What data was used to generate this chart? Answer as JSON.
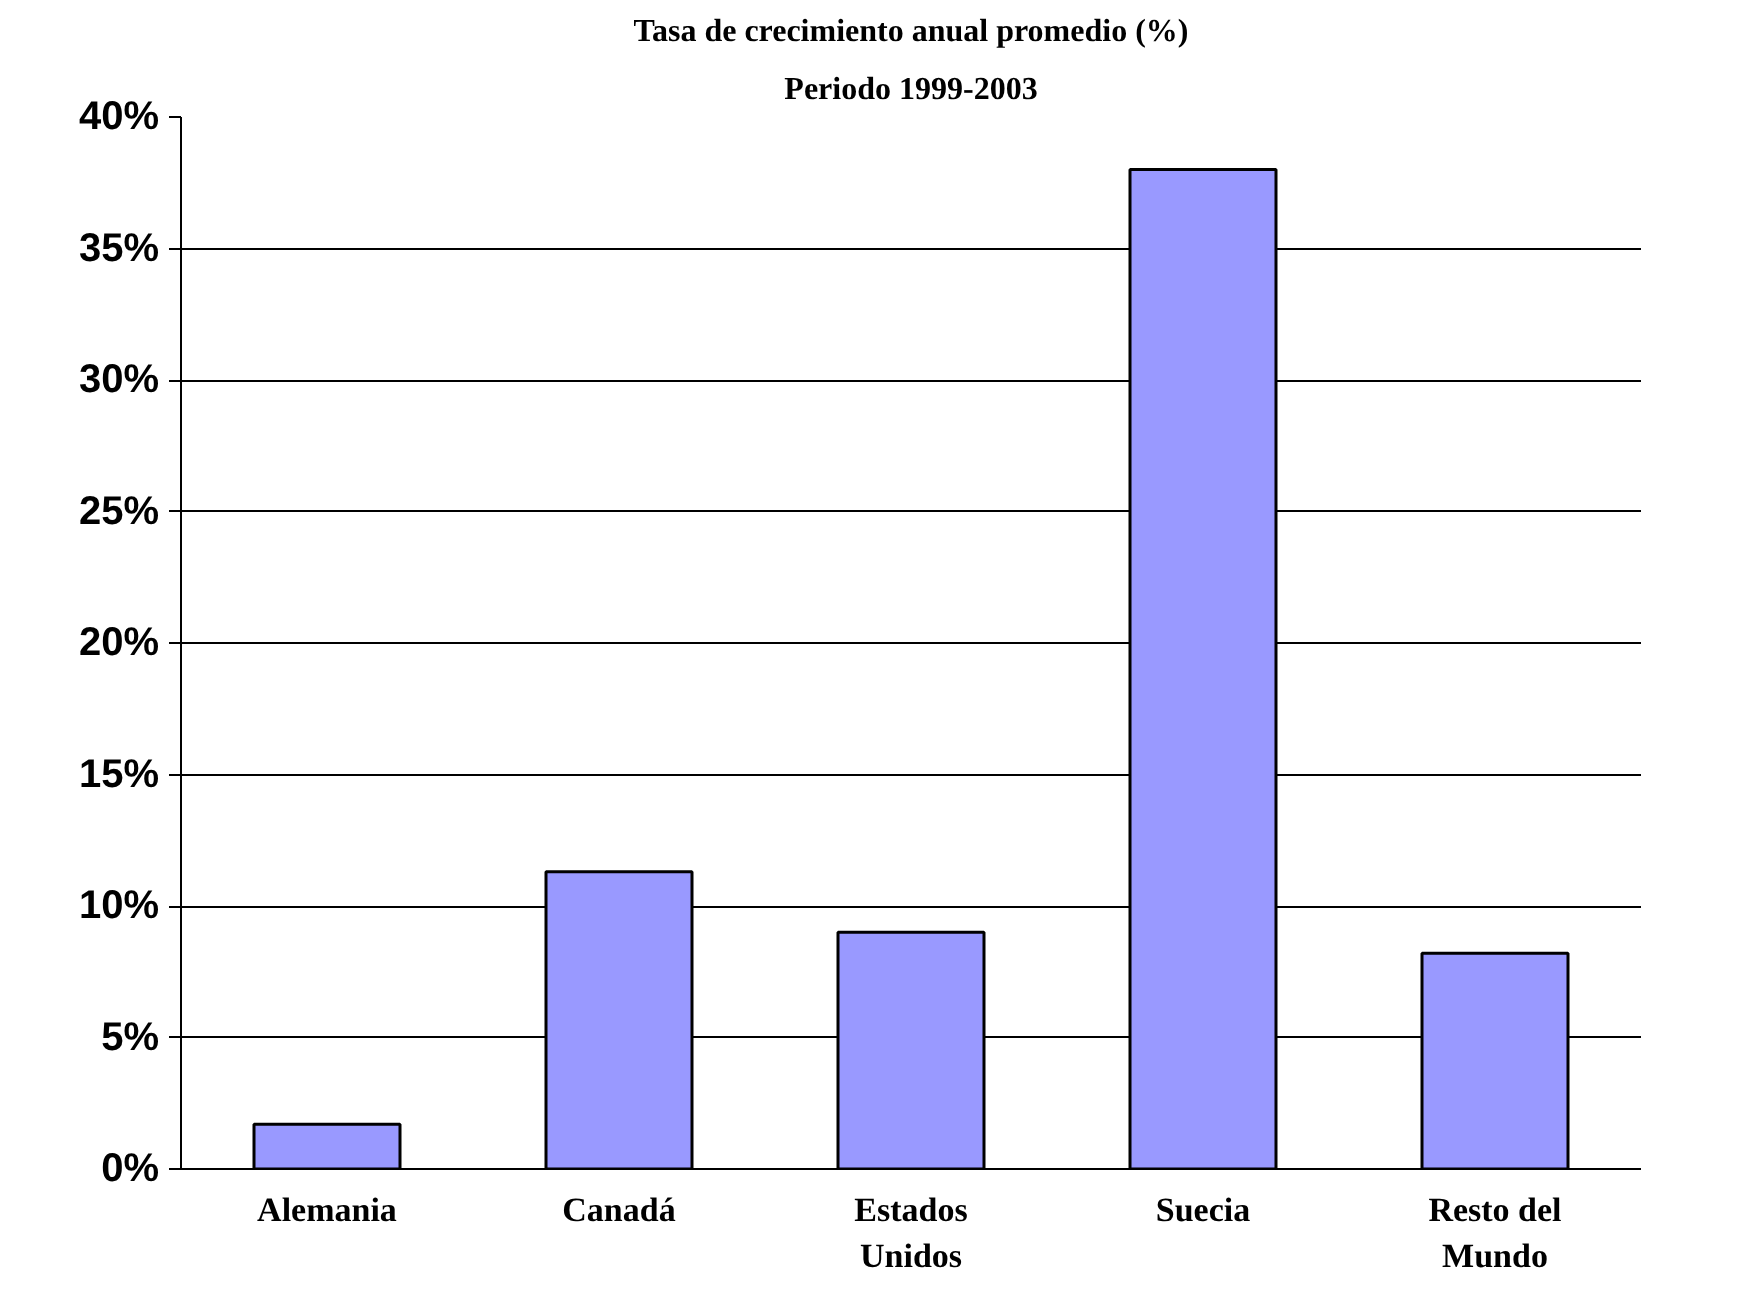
{
  "chart_data": {
    "type": "bar",
    "title": "Tasa de crecimiento anual promedio (%)",
    "subtitle": "Periodo 1999-2003",
    "categories": [
      "Alemania",
      "Canadá",
      "Estados Unidos",
      "Suecia",
      "Resto del Mundo"
    ],
    "values": [
      1.7,
      11.3,
      9.0,
      38.0,
      8.2
    ],
    "color": "#9999ff",
    "ylim": [
      0,
      40
    ],
    "yticks": [
      {
        "value": 0,
        "label": "0%"
      },
      {
        "value": 5,
        "label": "5%"
      },
      {
        "value": 10,
        "label": "10%"
      },
      {
        "value": 15,
        "label": "15%"
      },
      {
        "value": 20,
        "label": "20%"
      },
      {
        "value": 25,
        "label": "25%"
      },
      {
        "value": 30,
        "label": "30%"
      },
      {
        "value": 35,
        "label": "35%"
      },
      {
        "value": 40,
        "label": "40%"
      }
    ],
    "grid": "y"
  }
}
